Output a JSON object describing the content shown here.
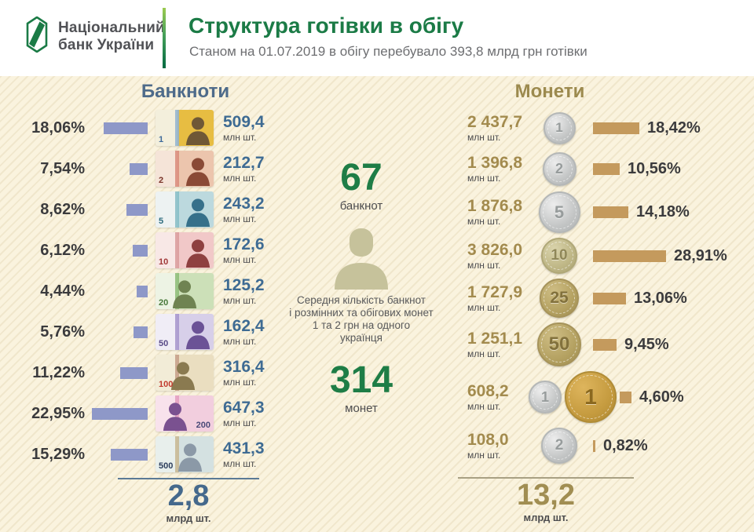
{
  "header": {
    "logo_line1": "Національний",
    "logo_line2": "банк України",
    "title": "Структура готівки в обігу",
    "subtitle": "Станом на 01.07.2019 в обігу перебувало 393,8 млрд грн готівки"
  },
  "colors": {
    "accent_green": "#1b7b46",
    "heading_blue": "#4e6b8a",
    "heading_gold": "#9c8a4e",
    "bar_blue": "#8e98c8",
    "bar_tan": "#c49a5d",
    "value_blue": "#3e6b93",
    "value_gold": "#a38b4e",
    "bg_cream": "#faf3de"
  },
  "banknotes": {
    "heading": "Банкноти",
    "unit": "млн шт.",
    "rows": [
      {
        "denom": "1",
        "percent": "18,06%",
        "pct": 18.06,
        "value": "509,4",
        "style": {
          "base": "#f3efdc",
          "accent": "#e7bd42",
          "sil": "#6f5836",
          "strip": "#8fb3cf",
          "num": "#3f6b9a",
          "sil_left": "52%",
          "num_side": "left"
        }
      },
      {
        "denom": "2",
        "percent": "7,54%",
        "pct": 7.54,
        "value": "212,7",
        "style": {
          "base": "#f5e4d8",
          "accent": "#ecc5ad",
          "sil": "#8a4a36",
          "strip": "#d98a7a",
          "num": "#7a352a",
          "sil_left": "52%",
          "num_side": "left"
        }
      },
      {
        "denom": "5",
        "percent": "8,62%",
        "pct": 8.62,
        "value": "243,2",
        "style": {
          "base": "#edf2f2",
          "accent": "#bcd9de",
          "sil": "#36708a",
          "strip": "#84bcc6",
          "num": "#2d6b7d",
          "sil_left": "52%",
          "num_side": "left"
        }
      },
      {
        "denom": "10",
        "percent": "6,12%",
        "pct": 6.12,
        "value": "172,6",
        "style": {
          "base": "#f8e8e6",
          "accent": "#f1c8c8",
          "sil": "#8e4040",
          "strip": "#d99a9a",
          "num": "#a03838",
          "sil_left": "52%",
          "num_side": "left"
        }
      },
      {
        "denom": "20",
        "percent": "4,44%",
        "pct": 4.44,
        "value": "125,2",
        "style": {
          "base": "#edf3e4",
          "accent": "#cce0b8",
          "sil": "#6f8352",
          "strip": "#8abb74",
          "num": "#47783a",
          "sil_left": "28%",
          "num_side": "left"
        }
      },
      {
        "denom": "50",
        "percent": "5,76%",
        "pct": 5.76,
        "value": "162,4",
        "style": {
          "base": "#f0edf6",
          "accent": "#d7cfe9",
          "sil": "#6b5296",
          "strip": "#a493cb",
          "num": "#584a87",
          "sil_left": "52%",
          "num_side": "left"
        }
      },
      {
        "denom": "100",
        "percent": "11,22%",
        "pct": 11.22,
        "value": "316,4",
        "style": {
          "base": "#f2ecd7",
          "accent": "#eadec0",
          "sil": "#8a7a50",
          "strip": "#c59e86",
          "num": "#c23b2e",
          "sil_left": "26%",
          "num_side": "left"
        }
      },
      {
        "denom": "200",
        "percent": "22,95%",
        "pct": 22.95,
        "value": "647,3",
        "style": {
          "base": "#f8e2ec",
          "accent": "#f2cede",
          "sil": "#7a5190",
          "strip": "#e39cbe",
          "num": "#4a4a78",
          "sil_left": "12%",
          "num_side": "right"
        }
      },
      {
        "denom": "500",
        "percent": "15,29%",
        "pct": 15.29,
        "value": "431,3",
        "style": {
          "base": "#e8efec",
          "accent": "#d4e1e1",
          "sil": "#8b99a7",
          "strip": "#c7b691",
          "num": "#2c3d5c",
          "sil_left": "38%",
          "num_side": "left"
        }
      }
    ],
    "total": {
      "value": "2,8",
      "unit": "млрд шт."
    }
  },
  "coins": {
    "heading": "Монети",
    "unit": "млн шт.",
    "rows": [
      {
        "value": "2 437,7",
        "percent": "18,42%",
        "pct": 18.42,
        "coins": [
          {
            "denom": "1",
            "size": 41,
            "tone": "silver"
          }
        ]
      },
      {
        "value": "1 396,8",
        "percent": "10,56%",
        "pct": 10.56,
        "coins": [
          {
            "denom": "2",
            "size": 43,
            "tone": "silver"
          }
        ]
      },
      {
        "value": "1 876,8",
        "percent": "14,18%",
        "pct": 14.18,
        "coins": [
          {
            "denom": "5",
            "size": 53,
            "tone": "silver"
          }
        ]
      },
      {
        "value": "3 826,0",
        "percent": "28,91%",
        "pct": 28.91,
        "coins": [
          {
            "denom": "10",
            "size": 46,
            "tone": "khaki"
          }
        ]
      },
      {
        "value": "1 727,9",
        "percent": "13,06%",
        "pct": 13.06,
        "coins": [
          {
            "denom": "25",
            "size": 50,
            "tone": "brass"
          }
        ]
      },
      {
        "value": "1 251,1",
        "percent": "9,45%",
        "pct": 9.45,
        "coins": [
          {
            "denom": "50",
            "size": 56,
            "tone": "brass"
          }
        ]
      },
      {
        "value": "608,2",
        "percent": "4,60%",
        "pct": 4.6,
        "coins": [
          {
            "denom": "1",
            "size": 42,
            "tone": "silver"
          },
          {
            "denom": "1",
            "size": 66,
            "tone": "gold"
          }
        ]
      },
      {
        "value": "108,0",
        "percent": "0,82%",
        "pct": 0.82,
        "coins": [
          {
            "denom": "2",
            "size": 46,
            "tone": "silver"
          }
        ]
      }
    ],
    "total": {
      "value": "13,2",
      "unit": "млрд шт."
    }
  },
  "center": {
    "banknotes_count": "67",
    "banknotes_label": "банкнот",
    "text_lines": [
      "Середня кількість банкнот",
      "і  розмінних та обігових монет",
      "1 та 2 грн на одного",
      "українця"
    ],
    "coins_count": "314",
    "coins_label": "монет"
  },
  "chart_data": [
    {
      "type": "bar",
      "title": "Банкноти",
      "categories": [
        "1",
        "2",
        "5",
        "10",
        "20",
        "50",
        "100",
        "200",
        "500"
      ],
      "series": [
        {
          "name": "частка, %",
          "values": [
            18.06,
            7.54,
            8.62,
            6.12,
            4.44,
            5.76,
            11.22,
            22.95,
            15.29
          ]
        },
        {
          "name": "млн шт.",
          "values": [
            509.4,
            212.7,
            243.2,
            172.6,
            125.2,
            162.4,
            316.4,
            647.3,
            431.3
          ]
        }
      ],
      "total": {
        "value": 2.8,
        "unit": "млрд шт."
      },
      "legend_position": "none",
      "grid": false
    },
    {
      "type": "bar",
      "title": "Монети",
      "categories": [
        "1 коп",
        "2 коп",
        "5 коп",
        "10 коп",
        "25 коп",
        "50 коп",
        "1 грн",
        "2 грн"
      ],
      "series": [
        {
          "name": "частка, %",
          "values": [
            18.42,
            10.56,
            14.18,
            28.91,
            13.06,
            9.45,
            4.6,
            0.82
          ]
        },
        {
          "name": "млн шт.",
          "values": [
            2437.7,
            1396.8,
            1876.8,
            3826.0,
            1727.9,
            1251.1,
            608.2,
            108.0
          ]
        }
      ],
      "total": {
        "value": 13.2,
        "unit": "млрд шт."
      },
      "legend_position": "none",
      "grid": false
    }
  ]
}
